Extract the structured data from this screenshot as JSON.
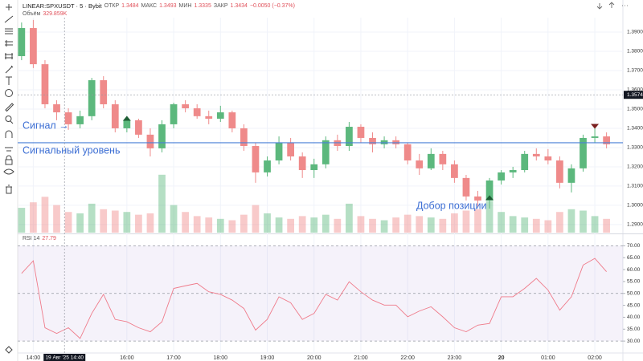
{
  "chart_data": {
    "type": "candlestick",
    "title": "LINEAR:SPXUSDT · 5 · Bybit",
    "ohlc_legend": [
      {
        "label": "ОТКР",
        "value": "1.3484"
      },
      {
        "label": "МАКС",
        "value": "1.3493"
      },
      {
        "label": "МИН",
        "value": "1.3335"
      },
      {
        "label": "ЗАКР",
        "value": "1.3434"
      }
    ],
    "change": "−0.0050 (−0.37%)",
    "volume_legend": {
      "label": "Объём",
      "value": "329.859K"
    },
    "x": [
      825,
      840,
      855,
      870,
      885,
      900,
      915,
      930,
      945,
      960,
      975,
      990,
      1005,
      1020,
      1035,
      1050,
      1065,
      1080,
      1095,
      1110,
      1125,
      1140,
      1155,
      1170,
      1185,
      1200,
      1215,
      1230,
      1245,
      1260,
      1275,
      1290,
      1305,
      1320,
      1335,
      1350,
      1365,
      1380,
      1395,
      1410,
      1425,
      1440,
      1455,
      1470,
      1485,
      1500,
      1515,
      1530,
      1545,
      1560,
      1575
    ],
    "xlim": [
      820,
      1596
    ],
    "xticks": [
      {
        "value": 840,
        "label": "14:00"
      },
      {
        "value": 960,
        "label": "16:00"
      },
      {
        "value": 1020,
        "label": "17:00"
      },
      {
        "value": 1080,
        "label": "18:00"
      },
      {
        "value": 1140,
        "label": "19:00"
      },
      {
        "value": 1200,
        "label": "20:00"
      },
      {
        "value": 1260,
        "label": "21:00"
      },
      {
        "value": 1320,
        "label": "22:00"
      },
      {
        "value": 1380,
        "label": "23:00"
      },
      {
        "value": 1440,
        "label": "20"
      },
      {
        "value": 1500,
        "label": "01:00"
      },
      {
        "value": 1560,
        "label": "02:00"
      }
    ],
    "open": [
      1.3775,
      1.3921,
      1.3733,
      1.3525,
      1.3483,
      1.3421,
      1.3463,
      1.365,
      1.3525,
      1.34,
      1.3442,
      1.3367,
      1.3296,
      1.3421,
      1.3525,
      1.3504,
      1.3463,
      1.345,
      1.3483,
      1.34,
      1.3308,
      1.3171,
      1.3233,
      1.3325,
      1.3254,
      1.3183,
      1.3213,
      1.3338,
      1.3308,
      1.3408,
      1.335,
      1.3317,
      1.3338,
      1.3317,
      1.3233,
      1.3192,
      1.3267,
      1.3213,
      1.3142,
      1.3046,
      1.3025,
      1.3129,
      1.3171,
      1.3183,
      1.3267,
      1.3254,
      1.3233,
      1.3117,
      1.3192,
      1.335,
      1.3358
    ],
    "high": [
      1.395,
      1.3963,
      1.3754,
      1.3546,
      1.3504,
      1.3492,
      1.3662,
      1.3671,
      1.3546,
      1.3463,
      1.345,
      1.34,
      1.3442,
      1.3533,
      1.3546,
      1.3525,
      1.3492,
      1.3517,
      1.3492,
      1.3421,
      1.3325,
      1.3254,
      1.3358,
      1.335,
      1.3275,
      1.3242,
      1.3358,
      1.3367,
      1.3433,
      1.3421,
      1.3379,
      1.3358,
      1.3358,
      1.3325,
      1.3267,
      1.3296,
      1.3283,
      1.3233,
      1.3158,
      1.3075,
      1.3142,
      1.3183,
      1.32,
      1.3283,
      1.3296,
      1.3292,
      1.3254,
      1.3213,
      1.3367,
      1.34,
      1.3379
    ],
    "low": [
      1.3754,
      1.3713,
      1.3504,
      1.3442,
      1.3392,
      1.34,
      1.3442,
      1.3504,
      1.3379,
      1.3379,
      1.335,
      1.3254,
      1.3275,
      1.34,
      1.3483,
      1.345,
      1.3421,
      1.3433,
      1.3379,
      1.3283,
      1.3117,
      1.315,
      1.3213,
      1.3233,
      1.3142,
      1.3142,
      1.3192,
      1.3283,
      1.3283,
      1.3325,
      1.3275,
      1.3296,
      1.3296,
      1.3213,
      1.3158,
      1.3183,
      1.3183,
      1.3117,
      1.3025,
      1.2992,
      1.2983,
      1.3108,
      1.3142,
      1.3171,
      1.3233,
      1.3213,
      1.3088,
      1.3067,
      1.3175,
      1.3325,
      1.3296
    ],
    "close": [
      1.3921,
      1.3733,
      1.3525,
      1.3483,
      1.3421,
      1.3463,
      1.365,
      1.3525,
      1.34,
      1.3442,
      1.3367,
      1.3296,
      1.3421,
      1.3525,
      1.3504,
      1.3463,
      1.345,
      1.3483,
      1.34,
      1.3308,
      1.3171,
      1.3233,
      1.3325,
      1.3254,
      1.3183,
      1.3213,
      1.3338,
      1.3308,
      1.3408,
      1.335,
      1.3317,
      1.3338,
      1.3317,
      1.3233,
      1.3192,
      1.3267,
      1.3213,
      1.3142,
      1.3046,
      1.3025,
      1.3129,
      1.3171,
      1.3183,
      1.3267,
      1.3254,
      1.3233,
      1.3117,
      1.3192,
      1.335,
      1.3358,
      1.3317
    ],
    "up_color": "#5cb87d",
    "down_color": "#ef8a8a",
    "volume": [
      180,
      220,
      260,
      200,
      150,
      140,
      210,
      170,
      160,
      150,
      130,
      140,
      420,
      200,
      150,
      120,
      110,
      100,
      90,
      130,
      200,
      140,
      110,
      100,
      120,
      110,
      130,
      100,
      210,
      120,
      100,
      90,
      110,
      130,
      120,
      110,
      100,
      140,
      160,
      170,
      230,
      150,
      120,
      110,
      100,
      90,
      150,
      170,
      160,
      120,
      100
    ],
    "volume_lim": [
      0,
      640
    ],
    "ylim": [
      1.2858,
      1.3975
    ],
    "yticks": [
      {
        "value": 1.29,
        "label": "1.2900"
      },
      {
        "value": 1.3,
        "label": "1.3000"
      },
      {
        "value": 1.31,
        "label": "1.3100"
      },
      {
        "value": 1.32,
        "label": "1.3200"
      },
      {
        "value": 1.33,
        "label": "1.3300"
      },
      {
        "value": 1.34,
        "label": "1.3400"
      },
      {
        "value": 1.35,
        "label": "1.3500"
      },
      {
        "value": 1.36,
        "label": "1.3600"
      },
      {
        "value": 1.37,
        "label": "1.3700"
      },
      {
        "value": 1.38,
        "label": "1.3800"
      },
      {
        "value": 1.39,
        "label": "1.3900"
      }
    ],
    "crosshair": {
      "x": {
        "value": 880,
        "label": "19 Авг '25  14:40"
      },
      "y": {
        "value": 1.3574,
        "label": "1.3574"
      }
    },
    "signal_level": 1.3325,
    "signal_color": "#4a80d8",
    "markers": [
      {
        "x": 960,
        "y": 1.3452,
        "direction": "up",
        "color": "#1e5e34"
      },
      {
        "x": 1425,
        "y": 1.304,
        "direction": "up",
        "color": "#1e5e34"
      },
      {
        "x": 1560,
        "y": 1.341,
        "direction": "down",
        "color": "#7a1f1f"
      }
    ],
    "annotations": [
      "Сигнал →",
      "Сигнальный уровень",
      "Добор позиции"
    ],
    "rsi": {
      "name": "RSI 14",
      "value_label": "27.79",
      "color": "#ef7b8a",
      "values": [
        58.4,
        63.7,
        35.6,
        33.2,
        35.6,
        31.1,
        41.6,
        49.6,
        39.1,
        38.1,
        35.6,
        33.9,
        38.1,
        52.1,
        53.2,
        54.2,
        50.7,
        49.6,
        47.2,
        43.7,
        34.6,
        39.1,
        48.6,
        46.1,
        39.1,
        41.6,
        49.6,
        47.2,
        54.9,
        50.7,
        47.2,
        45.1,
        45.1,
        40.2,
        42.6,
        44.4,
        40.2,
        35.6,
        33.9,
        36.7,
        37.4,
        48.6,
        48.6,
        52.1,
        56.3,
        51.4,
        43.0,
        48.6,
        61.9,
        64.7,
        59.1
      ],
      "ylim": [
        25,
        74.5
      ],
      "yticks": [
        {
          "value": 30,
          "label": "30.00"
        },
        {
          "value": 35,
          "label": "35.00"
        },
        {
          "value": 40,
          "label": "40.00"
        },
        {
          "value": 45,
          "label": "45.00"
        },
        {
          "value": 50,
          "label": "50.00"
        },
        {
          "value": 55,
          "label": "55.00"
        },
        {
          "value": 60,
          "label": "60.00"
        },
        {
          "value": 65,
          "label": "65.00"
        },
        {
          "value": 70,
          "label": "70.00"
        }
      ],
      "levels": [
        70,
        50,
        30
      ]
    }
  }
}
